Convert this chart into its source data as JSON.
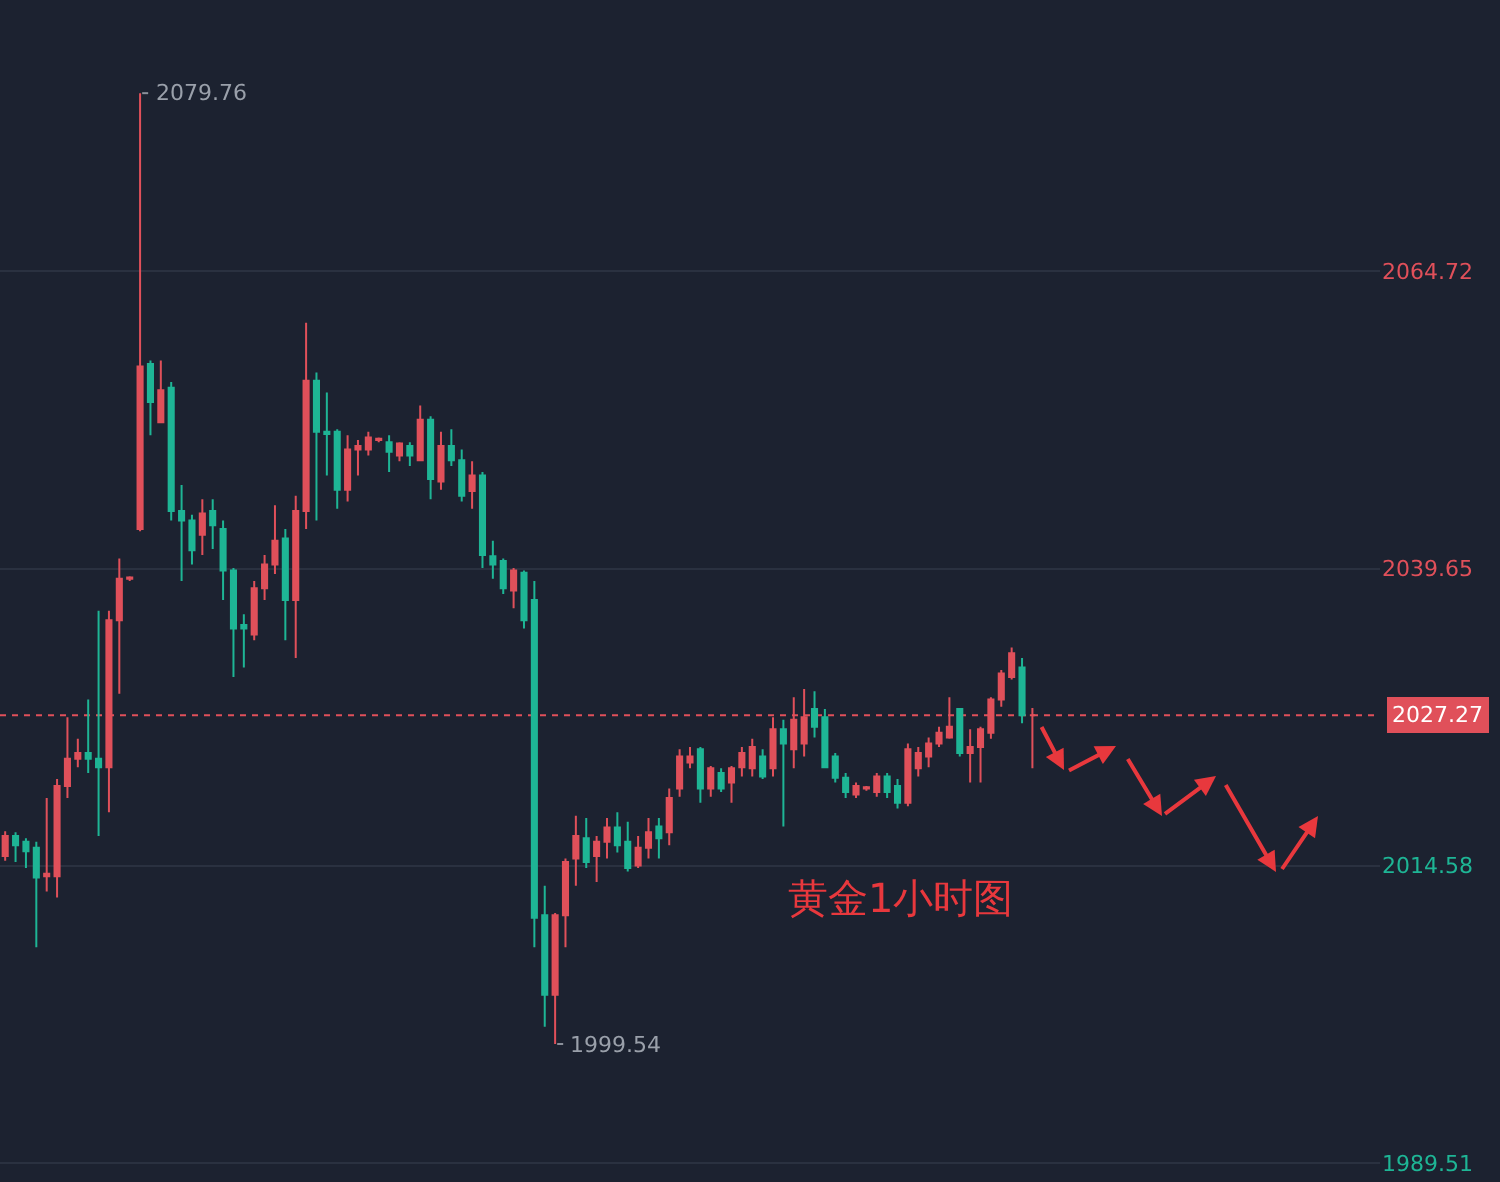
{
  "chart_data": {
    "type": "candlestick",
    "categories": [
      null,
      null,
      null,
      null,
      null,
      null,
      null,
      null,
      null,
      null,
      null,
      null,
      null,
      null,
      null,
      null,
      null,
      null,
      null,
      null,
      null,
      null,
      null,
      null,
      null,
      null,
      null,
      null,
      null,
      null,
      null,
      null,
      null,
      null,
      null,
      null,
      null,
      null,
      null,
      null,
      null,
      null,
      null,
      null,
      null,
      null,
      null,
      null,
      null,
      null,
      null,
      null,
      null,
      null,
      null,
      null,
      null,
      null,
      null,
      null,
      null,
      null,
      null,
      null,
      null,
      null,
      null,
      null,
      null,
      null,
      null,
      null,
      null,
      null,
      null,
      null,
      null,
      null,
      null,
      null,
      null,
      null,
      null,
      null,
      null,
      null,
      null,
      null,
      null,
      null,
      null,
      null,
      null,
      null,
      null,
      null,
      null,
      null,
      null,
      null,
      null,
      null,
      null,
      null,
      null,
      null,
      null,
      null,
      null,
      null,
      null,
      null,
      null,
      null,
      null,
      null,
      null,
      null,
      null,
      null,
      null,
      null,
      null,
      null,
      null,
      null,
      null,
      null,
      null,
      null,
      null,
      null,
      null
    ],
    "ohlc": [
      [
        2015.4,
        2017.5,
        2015.0,
        2017.1
      ],
      [
        2017.1,
        2017.4,
        2014.9,
        2016.3
      ],
      [
        2016.6,
        2016.9,
        2014.4,
        2015.8
      ],
      [
        2016.1,
        2016.6,
        2007.7,
        2013.6
      ],
      [
        2013.7,
        2020.3,
        2012.4,
        2013.9
      ],
      [
        2013.7,
        2021.9,
        2011.9,
        2021.3
      ],
      [
        2021.3,
        2027.1,
        2020.3,
        2023.6
      ],
      [
        2023.6,
        2025.3,
        2022.9,
        2024.1
      ],
      [
        2024.1,
        2028.6,
        2022.4,
        2023.6
      ],
      [
        2023.6,
        2036.1,
        2017.1,
        2022.9
      ],
      [
        2022.9,
        2036.1,
        2019.1,
        2035.3
      ],
      [
        2035.3,
        2040.5,
        2029.1,
        2038.8
      ],
      [
        2038.8,
        2039.0,
        2038.6,
        2038.9
      ],
      [
        2043.0,
        2079.76,
        2042.8,
        2056.7
      ],
      [
        2056.9,
        2057.2,
        2050.9,
        2053.7
      ],
      [
        2052.0,
        2057.2,
        2052.0,
        2054.7
      ],
      [
        2054.9,
        2055.4,
        2043.7,
        2044.5
      ],
      [
        2044.5,
        2046.7,
        2038.6,
        2043.7
      ],
      [
        2043.7,
        2044.2,
        2040.0,
        2041.2
      ],
      [
        2042.5,
        2045.5,
        2040.8,
        2044.3
      ],
      [
        2044.5,
        2045.5,
        2041.3,
        2043.3
      ],
      [
        2043.0,
        2043.7,
        2037.0,
        2039.5
      ],
      [
        2039.5,
        2039.7,
        2030.5,
        2034.6
      ],
      [
        2034.9,
        2035.8,
        2031.3,
        2034.6
      ],
      [
        2034.1,
        2038.6,
        2033.6,
        2038.0
      ],
      [
        2038.0,
        2040.8,
        2037.0,
        2040.0
      ],
      [
        2040.0,
        2045.0,
        2039.2,
        2042.0
      ],
      [
        2042.2,
        2043.0,
        2033.6,
        2037.0
      ],
      [
        2037.0,
        2045.8,
        2032.1,
        2044.5
      ],
      [
        2044.5,
        2060.4,
        2043.0,
        2055.5
      ],
      [
        2055.5,
        2056.2,
        2043.7,
        2051.2
      ],
      [
        2051.2,
        2054.5,
        2047.5,
        2051.0
      ],
      [
        2051.2,
        2051.4,
        2044.7,
        2046.3
      ],
      [
        2046.3,
        2050.9,
        2045.3,
        2049.7
      ],
      [
        2049.7,
        2050.5,
        2047.5,
        2050.0
      ],
      [
        2049.7,
        2051.2,
        2049.2,
        2050.7
      ],
      [
        2050.5,
        2050.7,
        2050.3,
        2050.6
      ],
      [
        2050.3,
        2050.9,
        2047.8,
        2049.5
      ],
      [
        2049.2,
        2050.3,
        2048.7,
        2050.2
      ],
      [
        2050.0,
        2050.3,
        2048.3,
        2049.2
      ],
      [
        2048.8,
        2053.4,
        2048.7,
        2052.2
      ],
      [
        2052.2,
        2052.5,
        2045.5,
        2047.2
      ],
      [
        2047.0,
        2051.2,
        2046.3,
        2050.0
      ],
      [
        2050.0,
        2051.4,
        2048.3,
        2048.8
      ],
      [
        2048.8,
        2049.7,
        2045.3,
        2045.8
      ],
      [
        2046.2,
        2048.7,
        2044.7,
        2047.5
      ],
      [
        2047.5,
        2047.8,
        2039.7,
        2040.8
      ],
      [
        2040.7,
        2042.0,
        2038.8,
        2040.0
      ],
      [
        2040.3,
        2040.5,
        2037.5,
        2038.0
      ],
      [
        2037.8,
        2039.7,
        2036.3,
        2039.5
      ],
      [
        2039.3,
        2039.5,
        2034.6,
        2035.3
      ],
      [
        2037.0,
        2038.6,
        2007.7,
        2010.2
      ],
      [
        2010.4,
        2012.9,
        2001.0,
        2003.7
      ],
      [
        2003.7,
        2010.6,
        1999.54,
        2010.4
      ],
      [
        2010.4,
        2015.2,
        2007.7,
        2014.9
      ],
      [
        2015.2,
        2018.8,
        2012.9,
        2017.1
      ],
      [
        2016.9,
        2018.6,
        2014.4,
        2014.9
      ],
      [
        2015.4,
        2017.1,
        2013.2,
        2016.6
      ],
      [
        2016.6,
        2018.6,
        2015.2,
        2017.8
      ],
      [
        2017.8,
        2019.1,
        2015.7,
        2016.3
      ],
      [
        2016.6,
        2018.3,
        2014.1,
        2014.4
      ],
      [
        2014.6,
        2017.1,
        2014.4,
        2016.1
      ],
      [
        2016.1,
        2018.6,
        2015.2,
        2017.4
      ],
      [
        2017.9,
        2018.6,
        2015.2,
        2016.9
      ],
      [
        2017.4,
        2021.1,
        2016.3,
        2020.3
      ],
      [
        2021.1,
        2024.4,
        2020.4,
        2023.8
      ],
      [
        2023.3,
        2024.6,
        2022.8,
        2023.8
      ],
      [
        2024.4,
        2024.6,
        2019.9,
        2021.1
      ],
      [
        2021.1,
        2023.0,
        2020.4,
        2022.8
      ],
      [
        2022.4,
        2022.8,
        2020.8,
        2021.1
      ],
      [
        2021.6,
        2023.0,
        2019.9,
        2022.8
      ],
      [
        2022.9,
        2024.6,
        2022.1,
        2024.1
      ],
      [
        2022.8,
        2025.3,
        2022.1,
        2024.6
      ],
      [
        2023.8,
        2024.4,
        2021.9,
        2022.1
      ],
      [
        2022.8,
        2027.1,
        2022.1,
        2026.1
      ],
      [
        2026.1,
        2026.9,
        2017.9,
        2024.9
      ],
      [
        2024.4,
        2028.8,
        2022.8,
        2026.9
      ],
      [
        2024.9,
        2029.5,
        2023.8,
        2027.1
      ],
      [
        2027.8,
        2029.3,
        2025.4,
        2026.3
      ],
      [
        2027.1,
        2027.8,
        2022.8,
        2022.9
      ],
      [
        2023.8,
        2024.1,
        2021.6,
        2022.0
      ],
      [
        2022.0,
        2022.4,
        2020.3,
        2020.8
      ],
      [
        2020.6,
        2021.6,
        2020.3,
        2021.3
      ],
      [
        2021.1,
        2021.3,
        2020.9,
        2021.2
      ],
      [
        2020.8,
        2022.4,
        2020.4,
        2022.1
      ],
      [
        2022.1,
        2022.4,
        2020.3,
        2020.8
      ],
      [
        2021.3,
        2021.9,
        2019.4,
        2019.9
      ],
      [
        2019.9,
        2024.9,
        2019.6,
        2024.4
      ],
      [
        2022.8,
        2024.6,
        2022.1,
        2024.1
      ],
      [
        2023.8,
        2025.4,
        2022.9,
        2024.9
      ],
      [
        2024.9,
        2026.3,
        2024.6,
        2025.8
      ],
      [
        2025.4,
        2028.8,
        2025.3,
        2026.3
      ],
      [
        2027.8,
        2027.9,
        2023.8,
        2024.1
      ],
      [
        2024.1,
        2026.1,
        2021.6,
        2024.6
      ],
      [
        2024.6,
        2026.3,
        2021.6,
        2026.1
      ],
      [
        2025.8,
        2028.8,
        2025.3,
        2028.6
      ],
      [
        2028.6,
        2031.1,
        2028.0,
        2030.8
      ],
      [
        2030.5,
        2033.0,
        2030.3,
        2032.5
      ],
      [
        2031.3,
        2032.1,
        2026.6,
        2027.27
      ],
      [
        2027.27,
        2027.9,
        2022.8,
        2027.27
      ],
      null,
      null,
      null,
      null,
      null,
      null,
      null,
      null,
      null,
      null,
      null,
      null,
      null,
      null,
      null,
      null,
      null,
      null,
      null,
      null,
      null,
      null,
      null,
      null,
      null,
      null,
      null,
      null,
      null,
      null,
      null,
      null,
      null
    ],
    "colors": [
      "#e0505a",
      "#1eb595",
      "#1eb595",
      "#1eb595",
      "#e0505a",
      "#e0505a",
      "#e0505a",
      "#e0505a",
      "#1eb595",
      "#1eb595",
      "#e0505a",
      "#e0505a",
      "#e0505a",
      "#e0505a",
      "#1eb595",
      "#e0505a",
      "#1eb595",
      "#1eb595",
      "#1eb595",
      "#e0505a",
      "#1eb595",
      "#1eb595",
      "#1eb595",
      "#1eb595",
      "#e0505a",
      "#e0505a",
      "#e0505a",
      "#1eb595",
      "#e0505a",
      "#e0505a",
      "#1eb595",
      "#1eb595",
      "#1eb595",
      "#e0505a",
      "#e0505a",
      "#e0505a",
      "#e0505a",
      "#1eb595",
      "#e0505a",
      "#1eb595",
      "#e0505a",
      "#1eb595",
      "#e0505a",
      "#1eb595",
      "#1eb595",
      "#e0505a",
      "#1eb595",
      "#1eb595",
      "#1eb595",
      "#e0505a",
      "#1eb595",
      "#1eb595",
      "#1eb595",
      "#e0505a",
      "#e0505a",
      "#e0505a",
      "#1eb595",
      "#e0505a",
      "#e0505a",
      "#1eb595",
      "#1eb595",
      "#e0505a",
      "#e0505a",
      "#1eb595",
      "#e0505a",
      "#e0505a",
      "#e0505a",
      "#1eb595",
      "#e0505a",
      "#1eb595",
      "#e0505a",
      "#e0505a",
      "#e0505a",
      "#1eb595",
      "#e0505a",
      "#1eb595",
      "#e0505a",
      "#e0505a",
      "#1eb595",
      "#1eb595",
      "#1eb595",
      "#1eb595",
      "#e0505a",
      "#e0505a",
      "#e0505a",
      "#1eb595",
      "#1eb595",
      "#e0505a",
      "#e0505a",
      "#e0505a",
      "#e0505a",
      "#e0505a",
      "#1eb595",
      "#e0505a",
      "#e0505a",
      "#e0505a",
      "#e0505a",
      "#e0505a",
      "#1eb595",
      "#e0505a",
      null,
      null,
      null,
      null,
      null,
      null,
      null,
      null,
      null,
      null,
      null,
      null,
      null,
      null,
      null,
      null,
      null,
      null,
      null,
      null,
      null,
      null,
      null,
      null,
      null,
      null,
      null,
      null,
      null,
      null,
      null,
      null,
      null
    ],
    "ylim": [
      1987.9,
      2087.62
    ],
    "yticks": [
      2064.72,
      2039.65,
      2014.58,
      1989.51
    ],
    "grid": "y",
    "tick_labels": "y",
    "ref_lines": [
      {
        "axis": "y",
        "value": 2027.27,
        "label": "2027.27",
        "color": "#e0505a",
        "line_style": "dotted"
      }
    ],
    "annotations": [
      "2079.76",
      "1999.54",
      "黄金1小时图"
    ]
  }
}
